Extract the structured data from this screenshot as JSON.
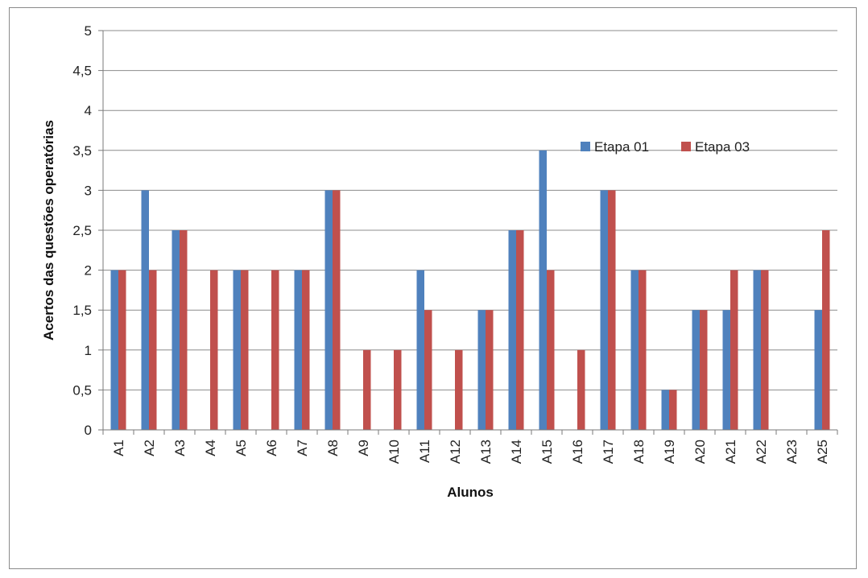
{
  "chart_data": {
    "type": "bar",
    "title": "",
    "xlabel": "Alunos",
    "ylabel": "Acertos das questões operatórias",
    "ylim": [
      0,
      5
    ],
    "yticks": [
      "0",
      "0,5",
      "1",
      "1,5",
      "2",
      "2,5",
      "3",
      "3,5",
      "4",
      "4,5",
      "5"
    ],
    "grid": true,
    "legend_position": "right",
    "categories": [
      "A1",
      "A2",
      "A3",
      "A4",
      "A5",
      "A6",
      "A7",
      "A8",
      "A9",
      "A10",
      "A11",
      "A12",
      "A13",
      "A14",
      "A15",
      "A16",
      "A17",
      "A18",
      "A19",
      "A20",
      "A21",
      "A22",
      "A23",
      "A25"
    ],
    "series": [
      {
        "name": "Etapa 01",
        "color": "#4f81bd",
        "values": [
          2,
          3,
          2.5,
          0,
          2,
          0,
          2,
          3,
          0,
          0,
          2,
          0,
          1.5,
          2.5,
          3.5,
          0,
          3,
          2,
          0.5,
          1.5,
          1.5,
          2,
          0,
          1.5
        ]
      },
      {
        "name": "Etapa 03",
        "color": "#c0504d",
        "values": [
          2,
          2,
          2.5,
          2,
          2,
          2,
          2,
          3,
          1,
          1,
          1.5,
          1,
          1.5,
          2.5,
          2,
          1,
          3,
          2,
          0.5,
          1.5,
          2,
          2,
          0,
          2.5
        ]
      }
    ]
  }
}
